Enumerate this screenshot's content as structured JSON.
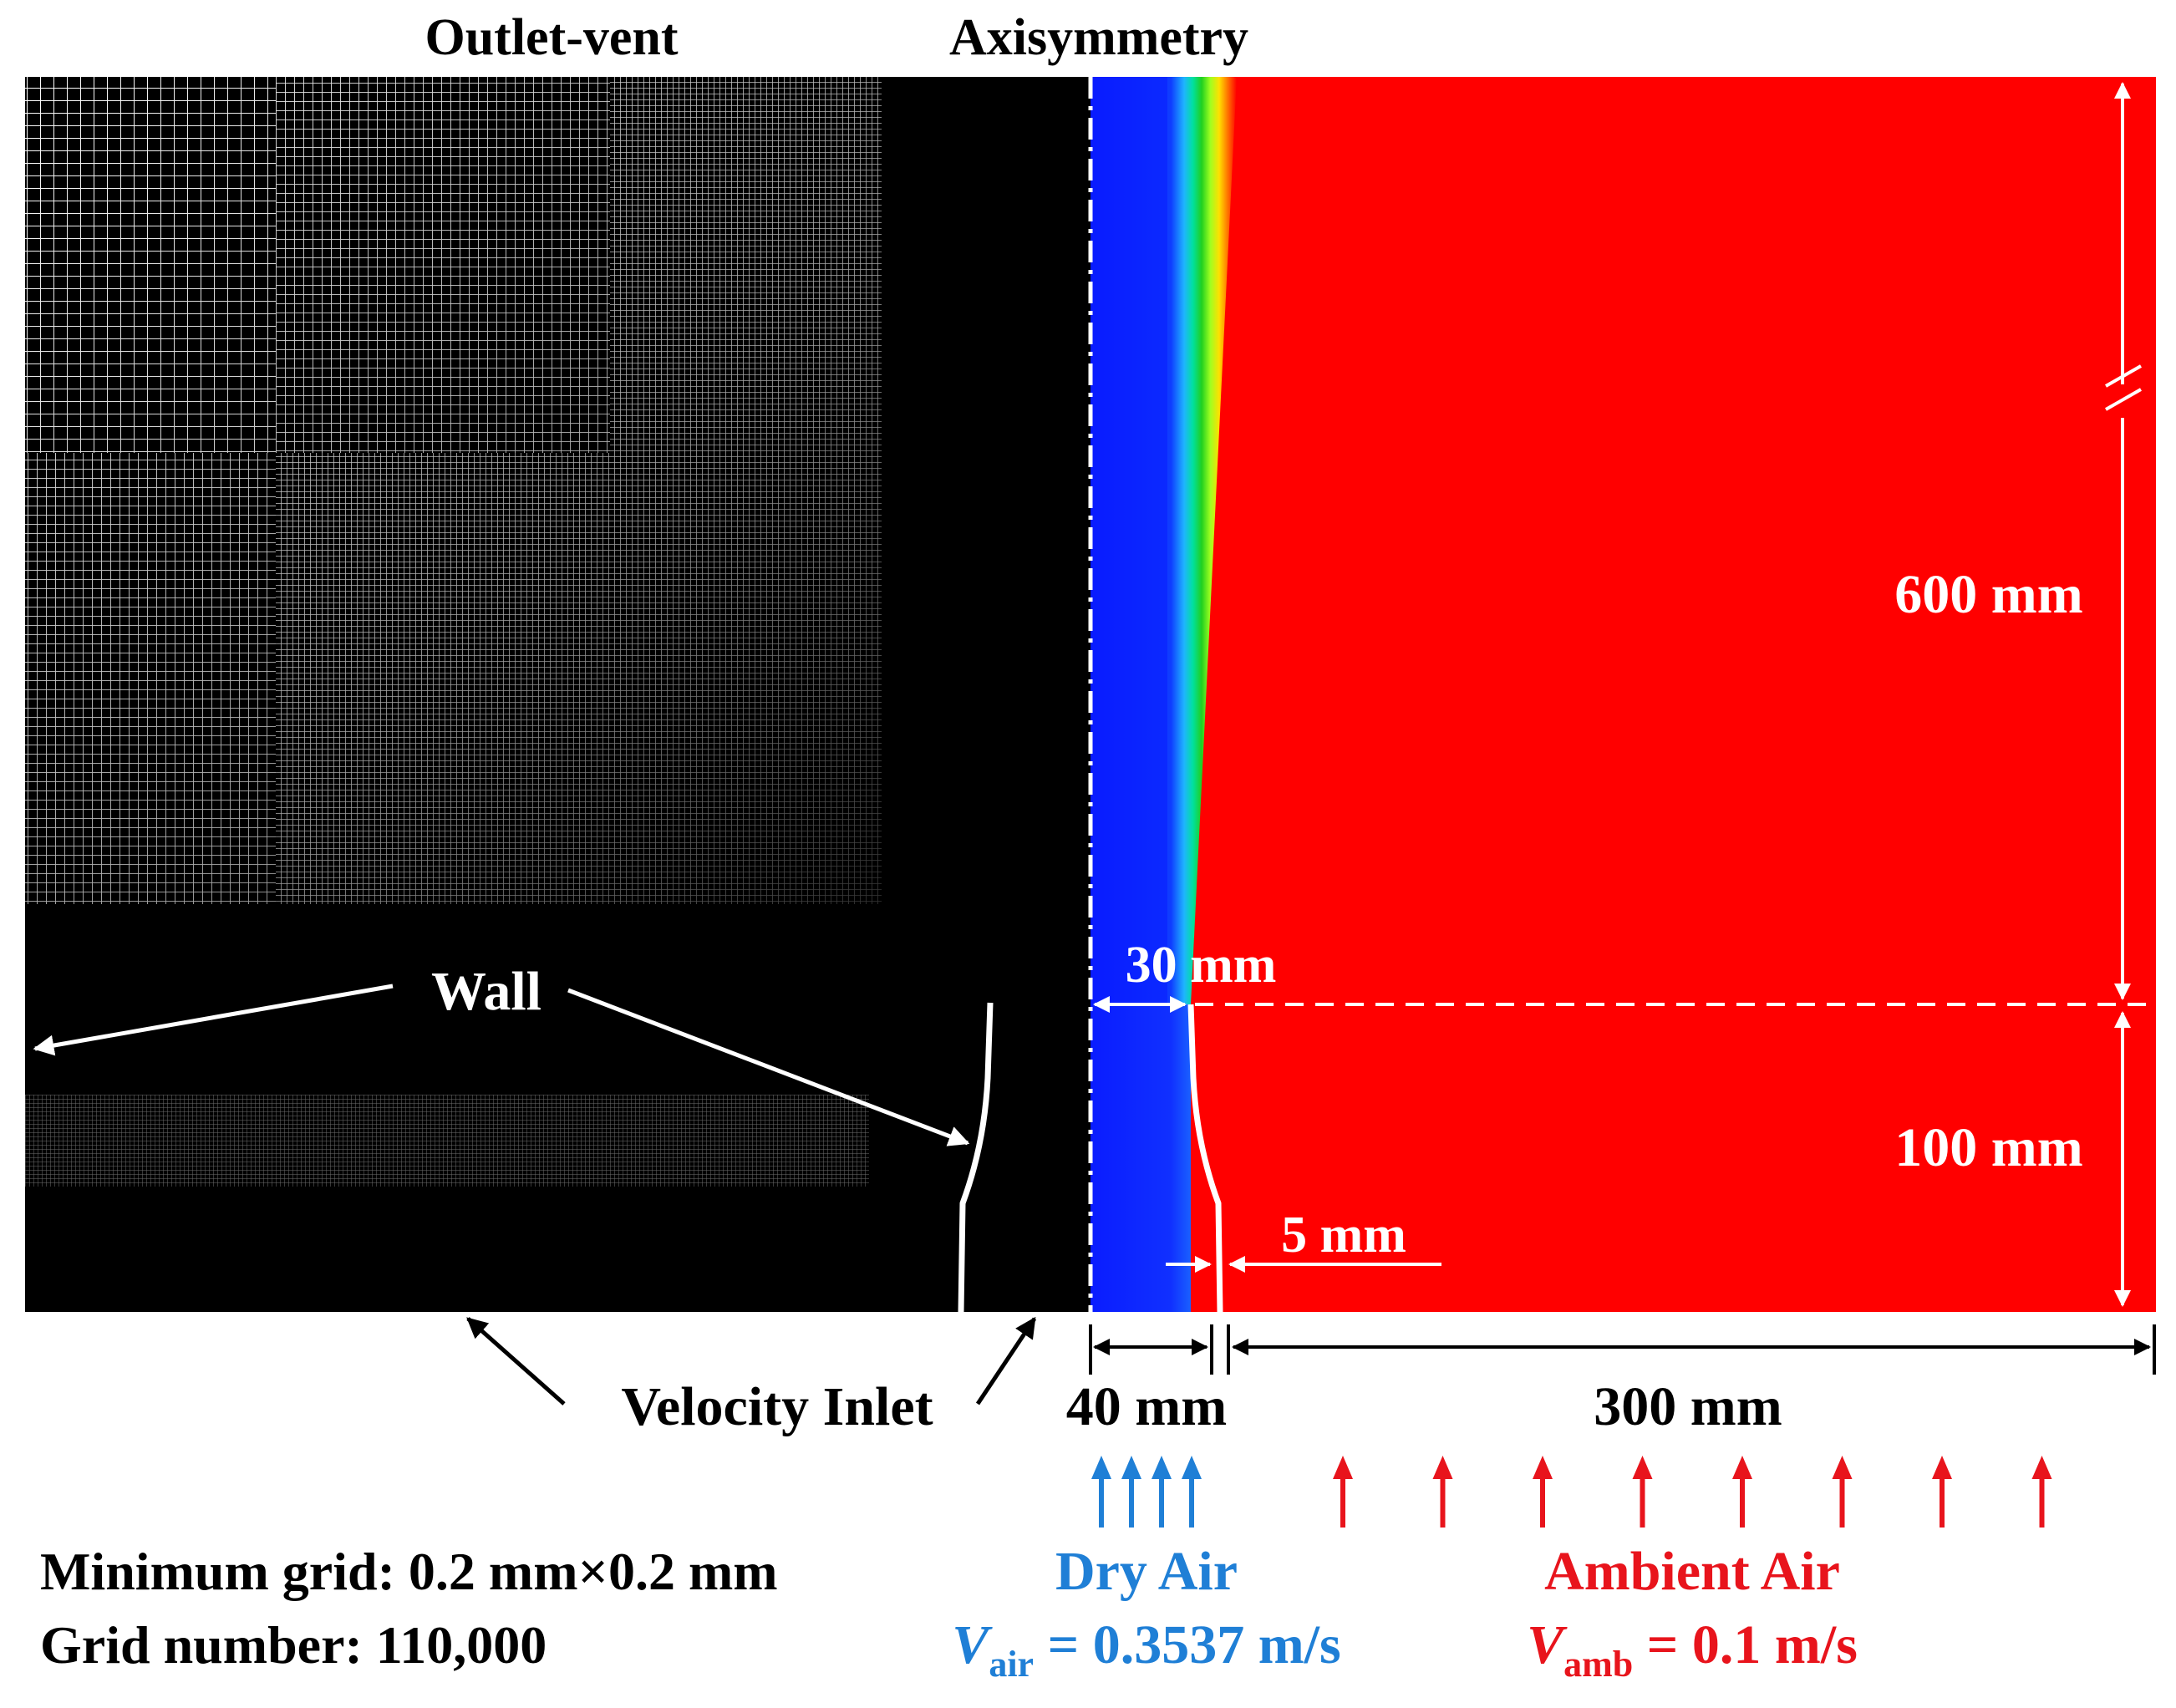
{
  "labels": {
    "outlet_vent": "Outlet-vent",
    "axisymmetry": "Axisymmetry",
    "wall": "Wall",
    "velocity_inlet": "Velocity Inlet",
    "dim_600": "600 mm",
    "dim_100": "100 mm",
    "dim_30": "30 mm",
    "dim_5": "5 mm",
    "dim_40": "40 mm",
    "dim_300": "300 mm"
  },
  "inlets": {
    "dry_air": {
      "label": "Dry Air",
      "v_symbol": "V",
      "v_subscript": "air",
      "v_value": " = 0.3537 m/s",
      "color": "#1f7fd6",
      "arrow_count": 4
    },
    "ambient_air": {
      "label": "Ambient Air",
      "v_symbol": "V",
      "v_subscript": "amb",
      "v_value": " = 0.1 m/s",
      "color": "#e8141c",
      "arrow_count": 8
    }
  },
  "grid_info": {
    "min_grid": "Minimum grid: 0.2 mm×0.2 mm",
    "grid_number": "Grid number: 110,000"
  },
  "colors": {
    "ambient_field": "#ff0000",
    "dry_core": "#1428ff",
    "mesh_background": "#000000",
    "annotation_white": "#ffffff"
  }
}
